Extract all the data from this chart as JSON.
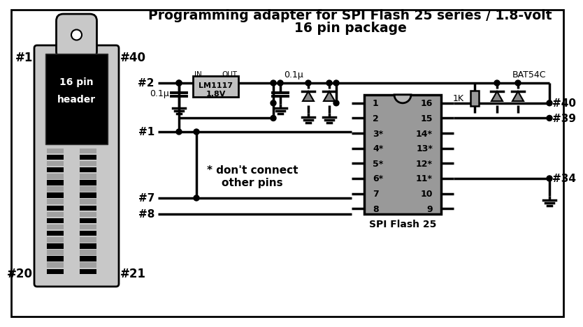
{
  "title_line1": "Programming adapter for SPI Flash 25 series / 1.8-volt",
  "title_line2": "16 pin package",
  "title_fontsize": 14,
  "bg_color": "#ffffff",
  "fg_color": "#000000",
  "chip_color": "#999999",
  "chip_label": "SPI Flash 25",
  "ic_label_line1": "LM1117",
  "ic_label_line2": "1.8V",
  "resistor_label": "1K",
  "bat_label": "BAT54C",
  "cap1_label": "0.1μ",
  "cap2_label": "0.1μ",
  "pin_left": [
    "1",
    "2",
    "3*",
    "4*",
    "5*",
    "6*",
    "7",
    "8"
  ],
  "pin_right": [
    "16",
    "15",
    "14*",
    "13*",
    "12*",
    "11*",
    "10",
    "9"
  ],
  "note_line1": "* don't connect",
  "note_line2": "other pins",
  "header_label_line1": "16 pin",
  "header_label_line2": "header",
  "in_label": "IN",
  "out_label": "OUT",
  "lbl_1": "#1",
  "lbl_2": "#2",
  "lbl_7": "#7",
  "lbl_8": "#8",
  "lbl_20": "#20",
  "lbl_21": "#21",
  "lbl_34": "#34",
  "lbl_39": "#39",
  "lbl_40_left": "#40",
  "lbl_40_right": "#40"
}
